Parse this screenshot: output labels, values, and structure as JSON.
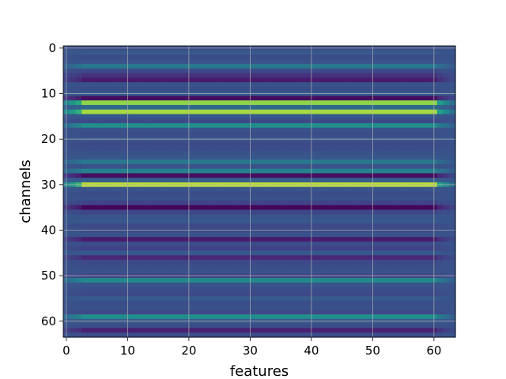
{
  "chart_data": {
    "type": "heatmap",
    "title": "",
    "xlabel": "features",
    "ylabel": "channels",
    "x_ticks": [
      "0",
      "10",
      "20",
      "30",
      "40",
      "50",
      "60"
    ],
    "y_ticks": [
      "0",
      "10",
      "20",
      "30",
      "40",
      "50",
      "60"
    ],
    "xlim": [
      -0.5,
      63.5
    ],
    "ylim": [
      63.5,
      -0.5
    ],
    "n_features": 64,
    "n_channels": 64,
    "grid": true,
    "colormap": "viridis",
    "colorbar": false,
    "row_levels": [
      0.3,
      0.35,
      0.3,
      0.33,
      0.5,
      0.28,
      0.18,
      0.1,
      0.32,
      0.3,
      0.36,
      0.05,
      0.9,
      0.42,
      0.92,
      0.35,
      0.28,
      0.62,
      0.32,
      0.3,
      0.34,
      0.28,
      0.3,
      0.32,
      0.35,
      0.5,
      0.32,
      0.55,
      0.05,
      0.38,
      0.94,
      0.33,
      0.3,
      0.32,
      0.25,
      0.02,
      0.26,
      0.33,
      0.35,
      0.28,
      0.3,
      0.32,
      0.1,
      0.3,
      0.25,
      0.35,
      0.15,
      0.28,
      0.3,
      0.32,
      0.26,
      0.6,
      0.33,
      0.3,
      0.28,
      0.36,
      0.3,
      0.32,
      0.28,
      0.62,
      0.35,
      0.3,
      0.12,
      0.3
    ],
    "edge_pattern": {
      "left_columns": [
        0,
        1,
        2
      ],
      "right_columns": [
        61,
        62,
        63
      ],
      "edge_level": 0.33
    }
  }
}
